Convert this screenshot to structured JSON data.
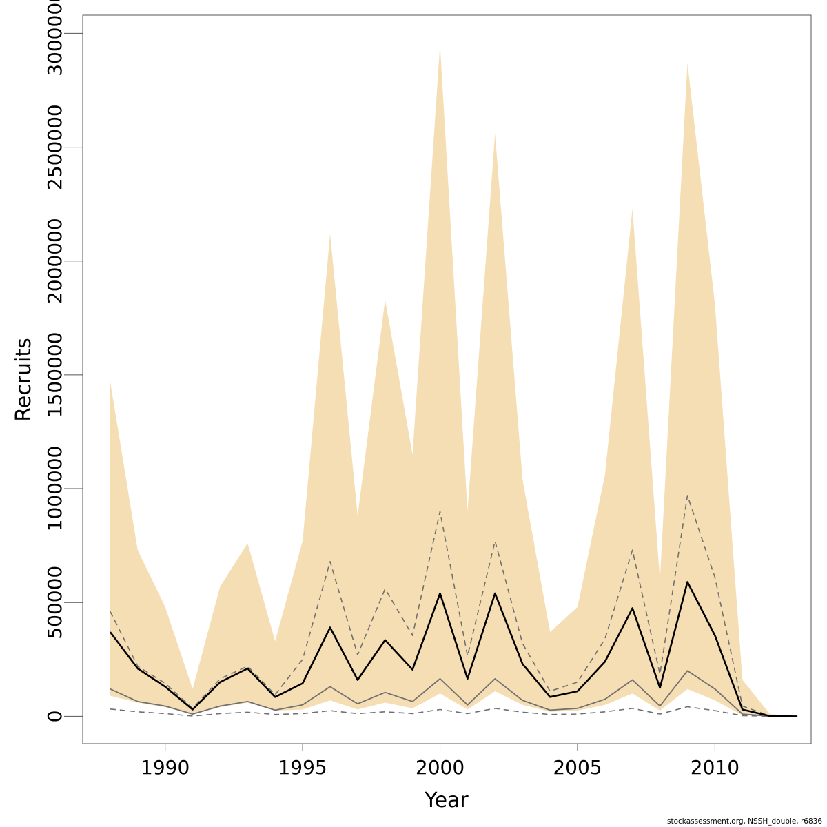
{
  "credit": "stockassessment.org, NSSH_double, r6836",
  "colors": {
    "band": "#F5DEB3",
    "median": "#000000",
    "grey": "#707070",
    "frame": "#555555"
  },
  "chart_data": {
    "type": "area",
    "xlabel": "Year",
    "ylabel": "Recruits",
    "xlim": [
      1987,
      2013.5
    ],
    "ylim": [
      -120000,
      3080000
    ],
    "x_ticks": [
      1990,
      1995,
      2000,
      2005,
      2010
    ],
    "y_ticks": [
      0,
      500000,
      1000000,
      1500000,
      2000000,
      2500000,
      3000000
    ],
    "grid": false,
    "legend": "none",
    "x": [
      1988,
      1989,
      1990,
      1991,
      1992,
      1993,
      1994,
      1995,
      1996,
      1997,
      1998,
      1999,
      2000,
      2001,
      2002,
      2003,
      2004,
      2005,
      2006,
      2007,
      2008,
      2009,
      2010,
      2011,
      2012,
      2013
    ],
    "series": [
      {
        "role": "band-upper",
        "values": [
          1470000,
          730000,
          480000,
          120000,
          570000,
          760000,
          330000,
          770000,
          2120000,
          880000,
          1830000,
          1150000,
          2950000,
          900000,
          2560000,
          1040000,
          370000,
          480000,
          1060000,
          2230000,
          600000,
          2870000,
          1810000,
          160000,
          10000,
          0
        ]
      },
      {
        "role": "band-lower",
        "values": [
          90000,
          60000,
          40000,
          10000,
          40000,
          60000,
          25000,
          30000,
          70000,
          30000,
          60000,
          35000,
          100000,
          30000,
          110000,
          50000,
          20000,
          25000,
          50000,
          100000,
          25000,
          120000,
          70000,
          5000,
          0,
          0
        ]
      },
      {
        "role": "median",
        "values": [
          370000,
          210000,
          130000,
          30000,
          150000,
          210000,
          85000,
          145000,
          390000,
          160000,
          335000,
          205000,
          540000,
          165000,
          540000,
          230000,
          85000,
          110000,
          240000,
          475000,
          125000,
          590000,
          355000,
          30000,
          1000,
          0
        ]
      },
      {
        "role": "upper-dashed",
        "values": [
          460000,
          220000,
          145000,
          35000,
          165000,
          220000,
          95000,
          250000,
          680000,
          270000,
          560000,
          355000,
          900000,
          265000,
          770000,
          320000,
          110000,
          150000,
          340000,
          730000,
          185000,
          970000,
          610000,
          45000,
          2000,
          0
        ]
      },
      {
        "role": "lower-solid",
        "values": [
          120000,
          65000,
          45000,
          10000,
          45000,
          65000,
          27000,
          50000,
          130000,
          55000,
          105000,
          65000,
          165000,
          50000,
          165000,
          70000,
          27000,
          35000,
          75000,
          160000,
          45000,
          200000,
          120000,
          10000,
          500,
          0
        ]
      },
      {
        "role": "lower-dashed",
        "values": [
          32000,
          20000,
          12000,
          1000,
          12000,
          18000,
          8000,
          12000,
          25000,
          12000,
          20000,
          12000,
          30000,
          12000,
          35000,
          18000,
          8000,
          10000,
          20000,
          35000,
          10000,
          42000,
          25000,
          3000,
          200,
          0
        ]
      }
    ]
  }
}
